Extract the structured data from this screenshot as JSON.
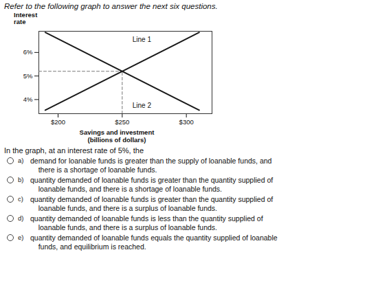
{
  "chart_data": {
    "type": "line",
    "title": "Refer to the following graph to answer the next six questions.",
    "xlabel": "Savings and investment\n(billions of dollars)",
    "ylabel": "Interest\nrate",
    "xlim": [
      185,
      320
    ],
    "ylim": [
      3.4,
      6.9
    ],
    "xticks": [
      {
        "value": 200,
        "label": "$200"
      },
      {
        "value": 250,
        "label": "$250"
      },
      {
        "value": 300,
        "label": "$300"
      }
    ],
    "yticks": [
      {
        "value": 4,
        "label": "4%"
      },
      {
        "value": 5,
        "label": "5%"
      },
      {
        "value": 6,
        "label": "6%"
      }
    ],
    "series": [
      {
        "color": "#1a1a1a",
        "x": [
          190,
          310
        ],
        "values": [
          3.55,
          6.85
        ]
      },
      {
        "color": "#1a1a1a",
        "x": [
          190,
          310
        ],
        "values": [
          6.85,
          3.55
        ]
      }
    ],
    "equilibrium": {
      "x": 250,
      "y": 5.2,
      "color": "#777777",
      "line_style": "dashed"
    },
    "annotations": [
      {
        "text": "Line 1",
        "x": 258,
        "y": 6.55
      },
      {
        "text": "Line 2",
        "x": 258,
        "y": 3.75
      }
    ],
    "grid": false,
    "question": "In the graph, at an interest rate of 5%, the",
    "options": [
      {
        "label": "a)",
        "text": "demand for loanable funds is greater than the supply of loanable funds, and\n    there is a shortage of loanable funds."
      },
      {
        "label": "b)",
        "text": "quantity demanded of loanable funds is greater than the quantity supplied of\n    loanable funds, and there is a shortage of loanable funds."
      },
      {
        "label": "c)",
        "text": "quantity demanded of loanable funds is greater than the quantity supplied of\n    loanable funds, and there is a surplus of loanable funds."
      },
      {
        "label": "d)",
        "text": "quantity demanded of loanable funds is less than the quantity supplied of\n    loanable funds, and there is a surplus of loanable funds."
      },
      {
        "label": "e)",
        "text": "quantity demanded of loanable funds equals the quantity supplied of loanable\n    funds, and equilibrium is reached."
      }
    ]
  }
}
